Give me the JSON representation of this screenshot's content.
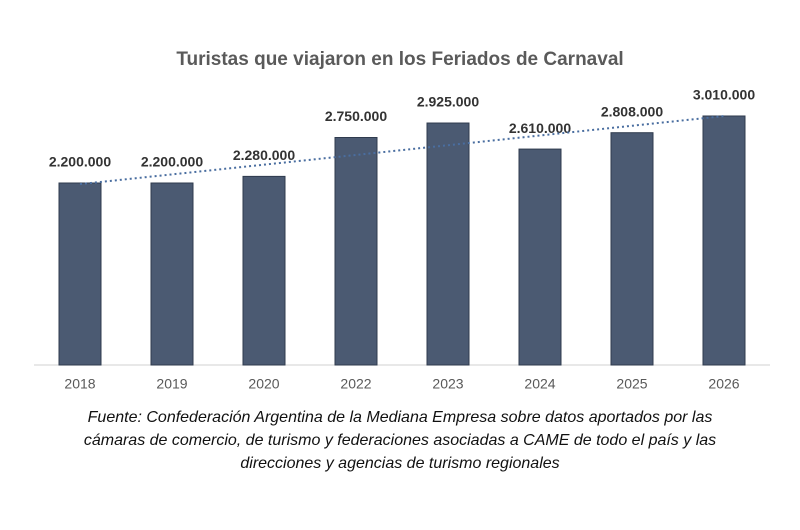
{
  "chart_data": {
    "type": "bar",
    "title": "Turistas que viajaron en los Feriados de Carnaval",
    "categories": [
      "2018",
      "2019",
      "2020",
      "2022",
      "2023",
      "2024",
      "2025",
      "2026"
    ],
    "values": [
      2200000,
      2200000,
      2280000,
      2750000,
      2925000,
      2610000,
      2808000,
      3010000
    ],
    "value_labels": [
      "2.200.000",
      "2.200.000",
      "2.280.000",
      "2.750.000",
      "2.925.000",
      "2.610.000",
      "2.808.000",
      "3.010.000"
    ],
    "color": "#4b5a72",
    "trendline": true,
    "ylim": [
      0,
      3300000
    ]
  },
  "source": [
    "Fuente: Confederación Argentina de la Mediana Empresa sobre datos aportados por las",
    "cámaras de comercio, de turismo y federaciones asociadas a CAME de todo el país y las",
    "direcciones y agencias de turismo regionales"
  ]
}
